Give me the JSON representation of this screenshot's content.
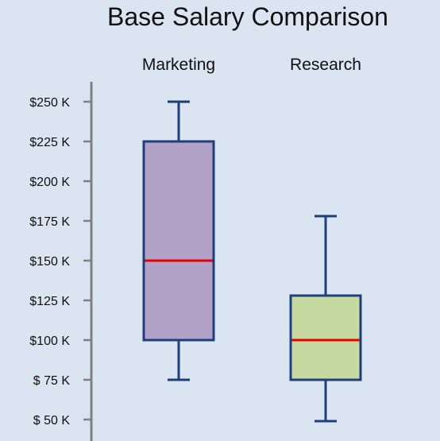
{
  "chart_data": {
    "type": "boxplot",
    "title": "Base Salary Comparison",
    "xlabel": "",
    "ylabel": "",
    "ylim": [
      50,
      250
    ],
    "y_unit": "$K",
    "yticks": [
      50,
      75,
      100,
      125,
      150,
      175,
      200,
      225,
      250
    ],
    "ytick_labels": [
      "$ 50 K",
      "$ 75 K",
      "$100 K",
      "$125 K",
      "$150 K",
      "$175 K",
      "$200 K",
      "$225 K",
      "$250 K"
    ],
    "categories": [
      "Marketing",
      "Research"
    ],
    "boxes": [
      {
        "category": "Marketing",
        "min": 75,
        "q1": 100,
        "median": 150,
        "q3": 225,
        "max": 250,
        "fill": "#b3a2c7"
      },
      {
        "category": "Research",
        "min": 49,
        "q1": 75,
        "median": 100,
        "q3": 128,
        "max": 178,
        "fill": "#c6d9a0"
      }
    ],
    "grid": false,
    "legend": "none"
  },
  "colors": {
    "background": "#dbe5f1",
    "box_stroke": "#1f3f7a",
    "median": "#e60000",
    "axis": "#7f7f7f"
  }
}
